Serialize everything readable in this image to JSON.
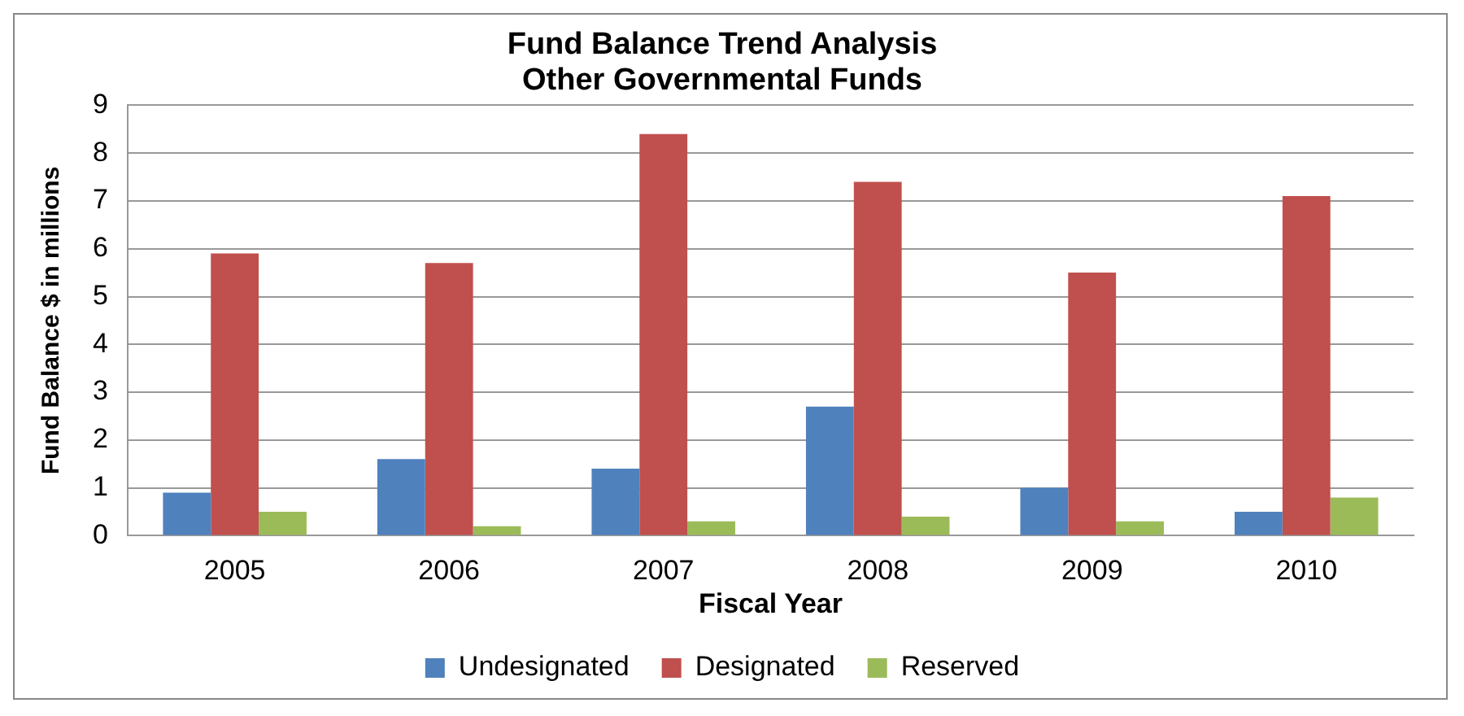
{
  "chart_data": {
    "type": "bar",
    "title": "Fund Balance Trend Analysis",
    "subtitle": "Other Governmental Funds",
    "xlabel": "Fiscal Year",
    "ylabel": "Fund Balance $ in millions",
    "categories": [
      "2005",
      "2006",
      "2007",
      "2008",
      "2009",
      "2010"
    ],
    "series": [
      {
        "name": "Undesignated",
        "color": "#4f81bd",
        "values": [
          0.9,
          1.6,
          1.4,
          2.7,
          1.0,
          0.5
        ]
      },
      {
        "name": "Designated",
        "color": "#c0504d",
        "values": [
          5.9,
          5.7,
          8.4,
          7.4,
          5.5,
          7.1
        ]
      },
      {
        "name": "Reserved",
        "color": "#9bbb59",
        "values": [
          0.5,
          0.2,
          0.3,
          0.4,
          0.3,
          0.8
        ]
      }
    ],
    "ylim": [
      0,
      9
    ],
    "yticks": [
      0,
      1,
      2,
      3,
      4,
      5,
      6,
      7,
      8,
      9
    ],
    "grid": "y",
    "legend": "bottom"
  }
}
